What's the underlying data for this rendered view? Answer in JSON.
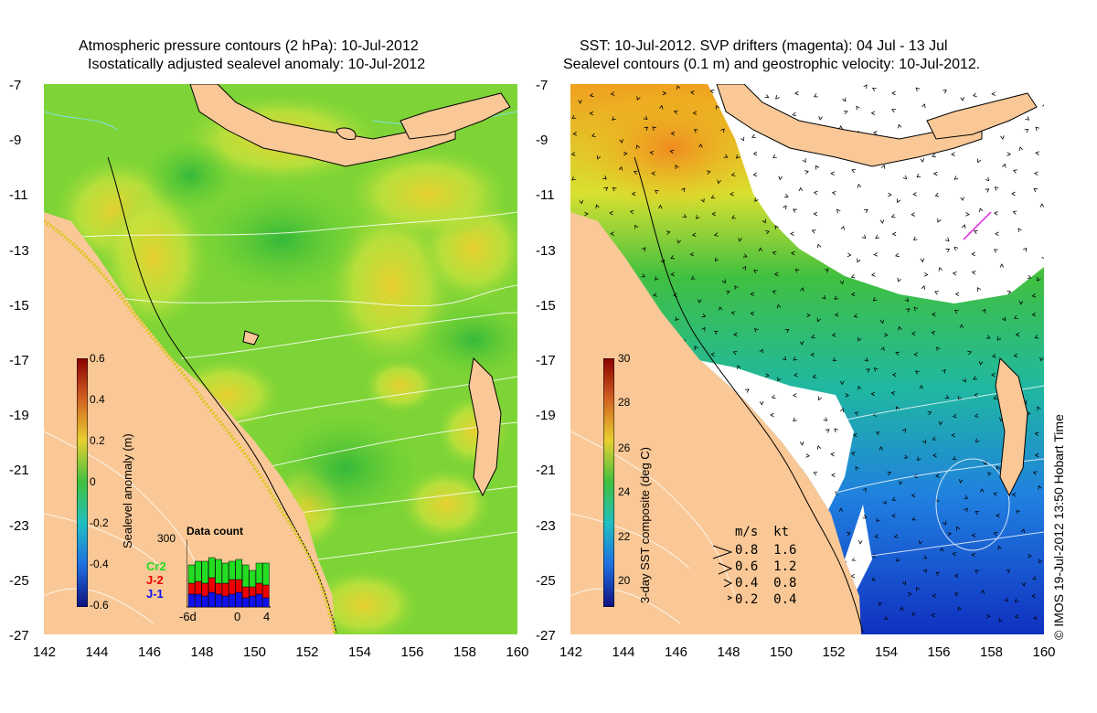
{
  "left_panel": {
    "title_line1": "Atmospheric pressure contours (2 hPa): 10-Jul-2012",
    "title_line2": "Isostatically adjusted sealevel anomaly: 10-Jul-2012",
    "colorbar_label": "Sealevel anomaly (m)",
    "colorbar_ticks": [
      "0.6",
      "0.4",
      "0.2",
      "0",
      "-0.2",
      "-0.4",
      "-0.6"
    ],
    "data_count": {
      "title": "Data count",
      "max_label": "300",
      "series": [
        {
          "name": "Cr2",
          "color": "#22dd22"
        },
        {
          "name": "J-2",
          "color": "#ee0000"
        },
        {
          "name": "J-1",
          "color": "#1111ee"
        }
      ],
      "x_ticks": [
        "-6d",
        "0",
        "4"
      ]
    }
  },
  "right_panel": {
    "title_line1": "SST: 10-Jul-2012. SVP drifters (magenta): 04 Jul - 13 Jul",
    "title_line2": "Sealevel contours (0.1 m) and geostrophic velocity: 10-Jul-2012.",
    "colorbar_label": "3-day SST composite (deg C)",
    "colorbar_ticks": [
      "30",
      "28",
      "26",
      "24",
      "22",
      "20"
    ],
    "velocity_legend": {
      "header": "m/s  kt",
      "rows": [
        "0.8  1.6",
        "0.6  1.2",
        "0.4  0.8",
        "0.2  0.4"
      ]
    }
  },
  "axes": {
    "lat_ticks": [
      "-7",
      "-9",
      "-11",
      "-13",
      "-15",
      "-17",
      "-19",
      "-21",
      "-23",
      "-25",
      "-27"
    ],
    "lon_ticks": [
      "142",
      "144",
      "146",
      "148",
      "150",
      "152",
      "154",
      "156",
      "158",
      "160"
    ]
  },
  "credit": "© IMOS 19-Jul-2012 13:50 Hobart Time",
  "colors": {
    "land": "#f9c896",
    "ocean_green": "#5ccc32",
    "ocean_yellowgreen": "#b7e33a",
    "cloud": "#ffffff"
  }
}
